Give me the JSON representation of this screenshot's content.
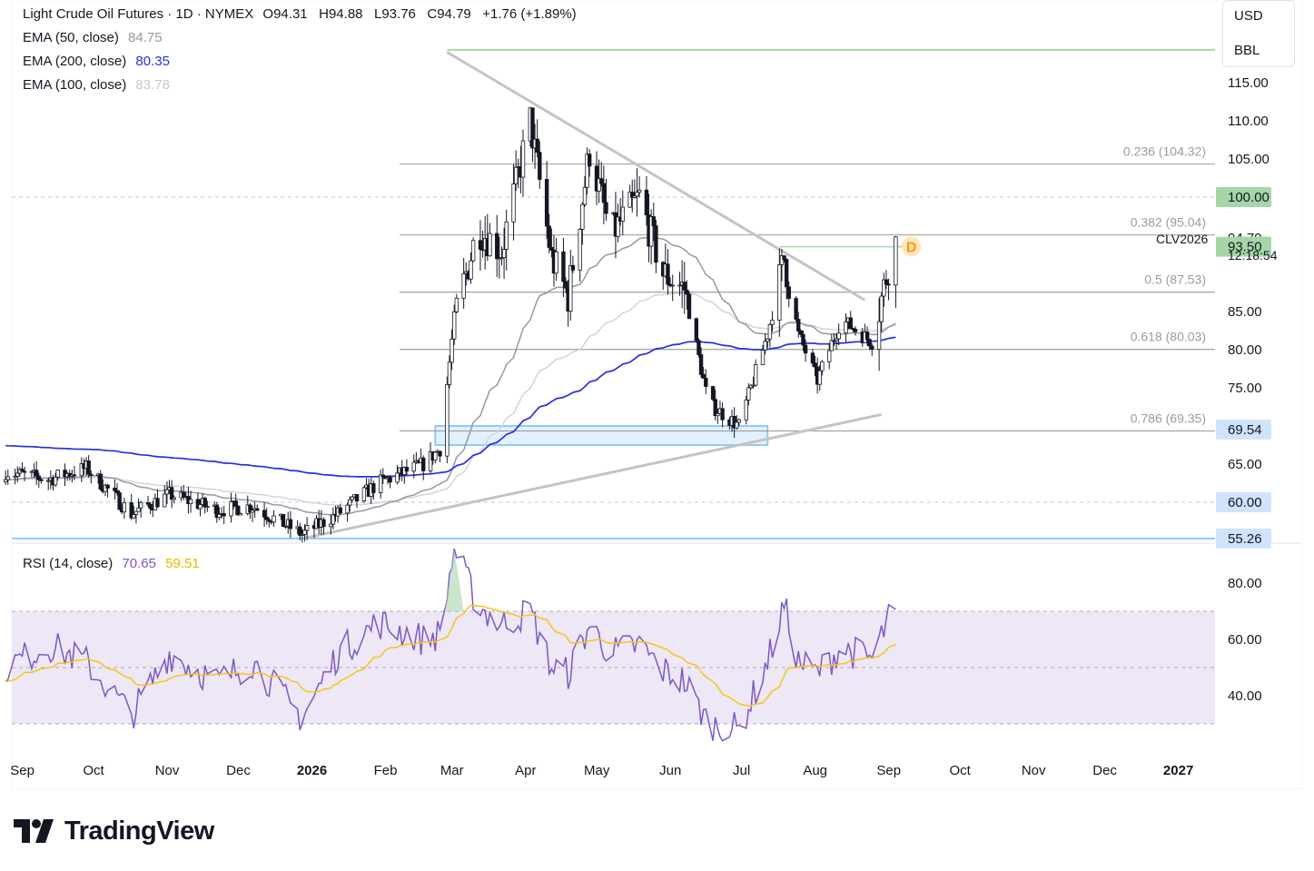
{
  "header": {
    "title": "Light Crude Oil Futures · 1D · NYMEX",
    "ohlc": "O94.31   H94.88   L93.76   C94.79   +1.76 (+1.89%)",
    "ema50_label": "EMA (50, close)",
    "ema50_value": "84.75",
    "ema200_label": "EMA (200, close)",
    "ema200_value": "80.35",
    "ema100_label": "EMA (100, close)",
    "ema100_value": "83.78"
  },
  "units": {
    "currency": "USD",
    "unit": "BBL"
  },
  "rsi_legend": {
    "label": "RSI (14, close)",
    "rsi_value": "70.65",
    "ma_value": "59.51"
  },
  "branding": {
    "name": "TradingView"
  },
  "colors": {
    "ema50": "#9598a1",
    "ema200": "#2a2ee0",
    "ema100": "#d1d4dc",
    "rsi": "#7e57c2",
    "rsi_ma": "#f5c518",
    "rsi_band": "#ede7f6",
    "up": "#131722",
    "down": "#131722",
    "trendline": "#c4c4c4",
    "fib": "#8a8a8a",
    "fib_label": "#9b9b9b",
    "level_green": "#a5d6a7",
    "zone_fill": "#e3f0ff",
    "zone_border": "#90caf9",
    "dashed_blue": "#b2cbe5",
    "price_label_green": "#a5d6a7",
    "price_label_blue": "#cfe3fb",
    "d_marker": "#ff9800"
  },
  "chart_data": [
    {
      "type": "candlestick",
      "symbol": "CLV2026",
      "last_price": "94.79",
      "countdown": "12:18:54",
      "y_ticks": [
        "115.00",
        "110.00",
        "105.00",
        "100.00",
        "94.79",
        "93.50",
        "85.00",
        "80.00",
        "75.00",
        "69.54",
        "65.00",
        "60.00",
        "55.26"
      ],
      "x_ticks": [
        "Sep",
        "Oct",
        "Nov",
        "Dec",
        "2026",
        "Feb",
        "Mar",
        "Apr",
        "May",
        "Jun",
        "Jul",
        "Aug",
        "Sep",
        "Oct",
        "Nov",
        "Dec",
        "2027"
      ],
      "tick_values": {
        "115.00": 115,
        "110.00": 110,
        "105.00": 105,
        "100.00": 100,
        "94.79": 94.79,
        "93.50": 93.5,
        "85.00": 85,
        "80.00": 80,
        "75.00": 75,
        "69.54": 69.54,
        "65.00": 65,
        "60.00": 60,
        "55.26": 55.26
      },
      "highlighted_ticks": {
        "100.00": "green",
        "93.50": "green",
        "69.54": "blue",
        "60.00": "blue",
        "55.26": "blue",
        "94.79": "plain"
      },
      "fibonacci": [
        {
          "label": "0.236 (104.32)",
          "value": 104.32
        },
        {
          "label": "0.382 (95.04)",
          "value": 95.04
        },
        {
          "label": "0.5 (87.53)",
          "value": 87.53
        },
        {
          "label": "0.618 (80.03)",
          "value": 80.03
        },
        {
          "label": "0.786 (69.35)",
          "value": 69.35
        }
      ],
      "horizontal_levels": [
        {
          "value": 119.3,
          "style": "green-solid"
        },
        {
          "value": 100.0,
          "style": "blue-dashed"
        },
        {
          "value": 60.0,
          "style": "blue-dashed"
        },
        {
          "value": 55.26,
          "style": "blue-solid"
        }
      ],
      "support_zone": {
        "from_date": "2026-02-25",
        "to_date": "2026-07-15",
        "low": 67.5,
        "high": 70.0
      },
      "trendlines": [
        {
          "from": [
            "2026-03-02",
            119.0
          ],
          "to": [
            "2026-08-25",
            86.5
          ]
        },
        {
          "from": [
            "2026-01-01",
            55.3
          ],
          "to": [
            "2026-09-01",
            71.5
          ]
        }
      ],
      "marker": {
        "text": "D",
        "date": "2026-09-14",
        "value": 93.5
      },
      "ema_summary": {
        "ema50": 84.75,
        "ema100": 83.78,
        "ema200": 80.35
      },
      "close_anchors": [
        [
          "2025-08-28",
          64.0
        ],
        [
          "2025-09-15",
          63.0
        ],
        [
          "2025-10-01",
          64.5
        ],
        [
          "2025-10-20",
          58.5
        ],
        [
          "2025-11-05",
          61.0
        ],
        [
          "2025-11-25",
          59.0
        ],
        [
          "2025-12-10",
          59.5
        ],
        [
          "2025-12-31",
          55.8
        ],
        [
          "2026-01-15",
          58.5
        ],
        [
          "2026-02-01",
          62.5
        ],
        [
          "2026-02-20",
          65.0
        ],
        [
          "2026-02-27",
          67.0
        ],
        [
          "2026-03-05",
          84.0
        ],
        [
          "2026-03-15",
          96.0
        ],
        [
          "2026-03-25",
          93.0
        ],
        [
          "2026-04-06",
          110.0
        ],
        [
          "2026-04-15",
          92.0
        ],
        [
          "2026-04-22",
          87.0
        ],
        [
          "2026-05-01",
          106.0
        ],
        [
          "2026-05-10",
          95.0
        ],
        [
          "2026-05-22",
          100.0
        ],
        [
          "2026-06-01",
          90.0
        ],
        [
          "2026-06-10",
          88.0
        ],
        [
          "2026-06-20",
          73.0
        ],
        [
          "2026-07-03",
          70.0
        ],
        [
          "2026-07-15",
          82.0
        ],
        [
          "2026-07-22",
          92.0
        ],
        [
          "2026-07-28",
          82.0
        ],
        [
          "2026-08-05",
          76.0
        ],
        [
          "2026-08-15",
          84.0
        ],
        [
          "2026-08-28",
          81.0
        ],
        [
          "2026-09-04",
          91.0
        ],
        [
          "2026-09-07",
          94.79
        ]
      ]
    },
    {
      "type": "line",
      "name": "RSI (14, close)",
      "y_ticks": [
        "80.00",
        "60.00",
        "40.00"
      ],
      "tick_values": {
        "80.00": 80,
        "60.00": 60,
        "40.00": 40
      },
      "band": [
        30,
        70
      ],
      "midline": 50,
      "rsi_anchors": [
        [
          "2025-08-28",
          50
        ],
        [
          "2025-09-15",
          58
        ],
        [
          "2025-10-01",
          52
        ],
        [
          "2025-10-20",
          33
        ],
        [
          "2025-11-05",
          55
        ],
        [
          "2025-11-25",
          45
        ],
        [
          "2025-12-10",
          52
        ],
        [
          "2025-12-31",
          32
        ],
        [
          "2026-01-15",
          55
        ],
        [
          "2026-02-01",
          66
        ],
        [
          "2026-02-20",
          60
        ],
        [
          "2026-02-27",
          62
        ],
        [
          "2026-03-05",
          92
        ],
        [
          "2026-03-15",
          72
        ],
        [
          "2026-03-25",
          65
        ],
        [
          "2026-04-06",
          70
        ],
        [
          "2026-04-15",
          50
        ],
        [
          "2026-04-22",
          48
        ],
        [
          "2026-05-01",
          65
        ],
        [
          "2026-05-10",
          55
        ],
        [
          "2026-05-22",
          58
        ],
        [
          "2026-06-01",
          49
        ],
        [
          "2026-06-10",
          45
        ],
        [
          "2026-06-20",
          30
        ],
        [
          "2026-07-03",
          28
        ],
        [
          "2026-07-15",
          52
        ],
        [
          "2026-07-22",
          72
        ],
        [
          "2026-07-28",
          52
        ],
        [
          "2026-08-05",
          48
        ],
        [
          "2026-08-15",
          57
        ],
        [
          "2026-08-28",
          53
        ],
        [
          "2026-09-04",
          67
        ],
        [
          "2026-09-07",
          70.65
        ]
      ],
      "rsi_ma_last": 59.51
    }
  ]
}
